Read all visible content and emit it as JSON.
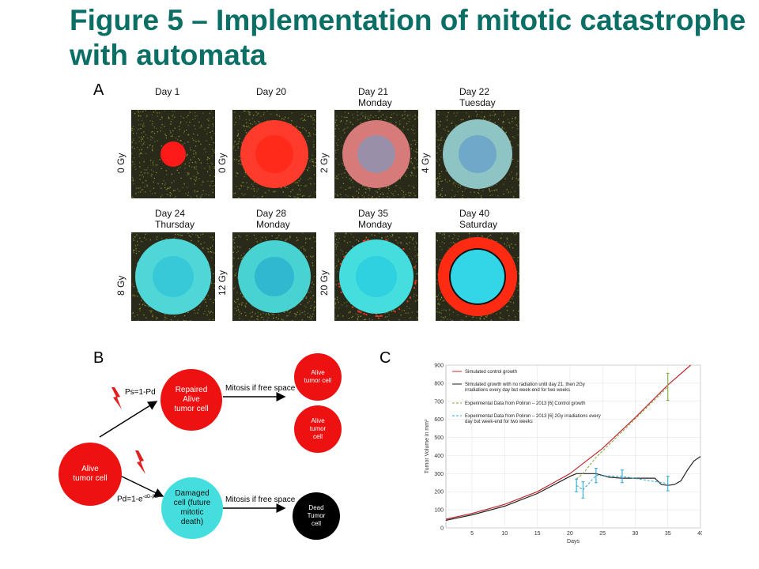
{
  "title": "Figure 5 – Implementation of mitotic catastrophe with automata",
  "panels": {
    "a_label": "A",
    "b_label": "B",
    "c_label": "C"
  },
  "panel_a": {
    "tiles": [
      {
        "day": "Day 1",
        "weekday": "",
        "dose": "0 Gy"
      },
      {
        "day": "Day 20",
        "weekday": "",
        "dose": "0 Gy"
      },
      {
        "day": "Day 21",
        "weekday": "Monday",
        "dose": "2 Gy"
      },
      {
        "day": "Day 22",
        "weekday": "Tuesday",
        "dose": "4 Gy"
      },
      {
        "day": "Day 24",
        "weekday": "Thursday",
        "dose": "8 Gy"
      },
      {
        "day": "Day 28",
        "weekday": "Monday",
        "dose": "12 Gy"
      },
      {
        "day": "Day 35",
        "weekday": "Monday",
        "dose": "20 Gy"
      },
      {
        "day": "Day 40",
        "weekday": "Saturday",
        "dose": ""
      }
    ]
  },
  "panel_b": {
    "alive": "Alive\ntumor cell",
    "repaired": "Repaired\nAlive\ntumor cell",
    "damaged": "Damaged\ncell (future\nmitotic\ndeath)",
    "alive_out1": "Alive\ntumor cell",
    "alive_out2": "Alive\ntumor\ncell",
    "dead": "Dead\nTumor\ncell",
    "ps": "Ps=1-Pd",
    "pd": "Pd=1-e",
    "pd_exp": "-αD-βD²",
    "mitosis1": "Mitosis if free space",
    "mitosis2": "Mitosis if free space"
  },
  "chart_data": {
    "type": "line",
    "xlabel": "Days",
    "ylabel": "Tumor Volume in mm³",
    "xlim": [
      1,
      40
    ],
    "ylim": [
      0,
      900
    ],
    "xticks": [
      5,
      10,
      15,
      20,
      25,
      30,
      35,
      40
    ],
    "yticks": [
      0,
      100,
      200,
      300,
      400,
      500,
      600,
      700,
      800,
      900
    ],
    "legend": [
      "Simulated control growth",
      "Simulated growth with no radiation until day 21, then 2Gy irradiations every day but week-end for two weeks",
      "Experimental Data from Poliron – 2013 [6] Control growth",
      "Experimental Data from Poliron – 2013 [6] 2Gy irradiations every day but week-end for two weeks"
    ],
    "series": [
      {
        "name": "Simulated control growth",
        "color": "#c0282d",
        "x": [
          1,
          5,
          10,
          15,
          20,
          25,
          30,
          35,
          38.5
        ],
        "y": [
          48,
          80,
          130,
          200,
          300,
          440,
          610,
          790,
          900
        ]
      },
      {
        "name": "Simulated growth with no radiation until day 21, then 2Gy irradiations every day but week-end for two weeks",
        "color": "#222222",
        "x": [
          1,
          5,
          10,
          15,
          20,
          21,
          22,
          24,
          26,
          28,
          30,
          33,
          34,
          35,
          36,
          37,
          38,
          39,
          40
        ],
        "y": [
          42,
          72,
          120,
          190,
          285,
          300,
          300,
          300,
          280,
          275,
          275,
          275,
          240,
          235,
          240,
          260,
          320,
          370,
          395
        ]
      },
      {
        "name": "Experimental Data from Poliron – 2013 [6] Control growth",
        "color": "#7fa83a",
        "x": [
          21,
          22,
          24,
          35
        ],
        "y": [
          270,
          300,
          390,
          780
        ],
        "err": [
          0,
          0,
          0,
          75
        ]
      },
      {
        "name": "Experimental Data from Poliron – 2013 [6] 2Gy irradiations every day but week-end for two weeks",
        "color": "#2aa9d6",
        "x": [
          21,
          22,
          24,
          28,
          35
        ],
        "y": [
          235,
          210,
          290,
          285,
          245
        ],
        "err": [
          35,
          45,
          40,
          35,
          40
        ]
      }
    ]
  },
  "colors": {
    "title": "#0b6f66",
    "red_cell": "#ee1111",
    "cyan_cell": "#44dede",
    "dead_cell": "#000000"
  }
}
